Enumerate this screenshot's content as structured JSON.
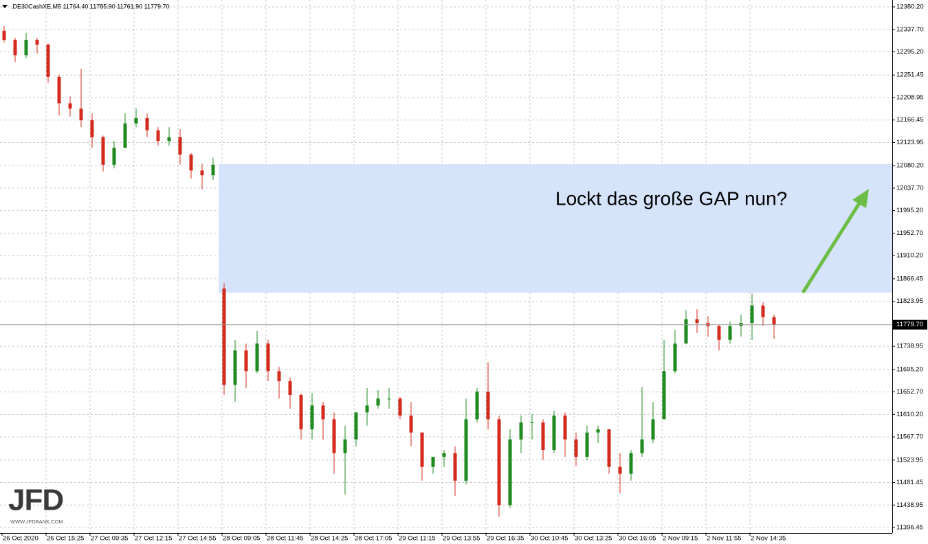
{
  "header": ".DE30CashXE,M5  11764.40 11785.90 11761.90 11779.70",
  "logo": {
    "brand": "JFD",
    "site": "WWW.JFDBANK.COM"
  },
  "chart_data": {
    "type": "candlestick",
    "annotation": "Lockt das große GAP nun?",
    "categories": [
      "26 Oct 2020",
      null,
      null,
      null,
      "26 Oct 15:25",
      null,
      null,
      null,
      "27 Oct 09:35",
      null,
      null,
      null,
      "27 Oct 12:15",
      null,
      null,
      null,
      "27 Oct 14:55",
      null,
      null,
      null,
      "28 Oct 09:05",
      null,
      null,
      null,
      "28 Oct 11:45",
      null,
      null,
      null,
      "28 Oct 14:25",
      null,
      null,
      null,
      "28 Oct 17:05",
      null,
      null,
      null,
      "29 Oct 11:15",
      null,
      null,
      null,
      "29 Oct 13:55",
      null,
      null,
      null,
      "29 Oct 16:35",
      null,
      null,
      null,
      "30 Oct 10:45",
      null,
      null,
      null,
      "30 Oct 13:25",
      null,
      null,
      null,
      "30 Oct 16:05",
      null,
      null,
      null,
      "2 Nov 09:15",
      null,
      null,
      null,
      "2 Nov 11:55",
      null,
      null,
      null,
      "2 Nov 14:35",
      null,
      null
    ],
    "open": [
      12335,
      12318,
      12289,
      12318,
      12309,
      12248,
      12198,
      12188,
      12166,
      12134,
      12082,
      12114,
      12160,
      12170,
      12147,
      12127,
      12134,
      12101,
      12071,
      12062,
      11848,
      11666,
      11731,
      11692,
      11744,
      11692,
      11673,
      11647,
      11582,
      11627,
      11601,
      11537,
      11563,
      11614,
      11627,
      11640,
      11640,
      11608,
      11576,
      11511,
      11530,
      11537,
      11485,
      11601,
      11653,
      11601,
      11439,
      11563,
      11595,
      11595,
      11543,
      11608,
      11563,
      11530,
      11576,
      11582,
      11511,
      11498,
      11537,
      11563,
      11601,
      11692,
      11744,
      11790,
      11783,
      11777,
      11751,
      11777,
      11783,
      11816,
      11794
    ],
    "high": [
      12344,
      12322,
      12331,
      12322,
      12311,
      12252,
      12211,
      12263,
      12179,
      12137,
      12127,
      12179,
      12188,
      12179,
      12153,
      12153,
      12149,
      12104,
      12084,
      12095,
      11858,
      11751,
      11744,
      11768,
      11751,
      11700,
      11680,
      11650,
      11651,
      11634,
      11614,
      11589,
      11614,
      11660,
      11656,
      11660,
      11643,
      11634,
      11576,
      11530,
      11543,
      11550,
      11640,
      11660,
      11709,
      11608,
      11582,
      11608,
      11611,
      11601,
      11617,
      11614,
      11576,
      11589,
      11589,
      11582,
      11537,
      11543,
      11662,
      11634,
      11751,
      11770,
      11807,
      11809,
      11796,
      11780,
      11786,
      11799,
      11838,
      11822,
      11799
    ],
    "low": [
      12313,
      12276,
      12283,
      12292,
      12237,
      12175,
      12173,
      12153,
      12114,
      12069,
      12075,
      12114,
      12153,
      12134,
      12118,
      12118,
      12082,
      12056,
      12036,
      12053,
      11647,
      11634,
      11660,
      11688,
      11673,
      11640,
      11621,
      11563,
      11563,
      11563,
      11498,
      11459,
      11550,
      11589,
      11621,
      11621,
      11601,
      11550,
      11485,
      11498,
      11511,
      11456,
      11478,
      11595,
      11582,
      11417,
      11433,
      11537,
      11563,
      11524,
      11537,
      11530,
      11513,
      11524,
      11556,
      11498,
      11461,
      11485,
      11530,
      11556,
      11601,
      11688,
      11744,
      11764,
      11757,
      11731,
      11744,
      11757,
      11751,
      11777,
      11753
    ],
    "close": [
      12318,
      12289,
      12318,
      12309,
      12248,
      12198,
      12188,
      12166,
      12134,
      12082,
      12114,
      12160,
      12170,
      12147,
      12127,
      12134,
      12101,
      12071,
      12062,
      12082,
      11666,
      11731,
      11692,
      11744,
      11692,
      11673,
      11647,
      11582,
      11627,
      11601,
      11537,
      11563,
      11614,
      11627,
      11640,
      11640,
      11608,
      11576,
      11511,
      11530,
      11537,
      11485,
      11601,
      11653,
      11601,
      11439,
      11563,
      11595,
      11595,
      11543,
      11608,
      11563,
      11530,
      11576,
      11582,
      11511,
      11498,
      11537,
      11563,
      11601,
      11692,
      11744,
      11790,
      11783,
      11777,
      11751,
      11777,
      11783,
      11816,
      11794,
      11779.7
    ],
    "up_color": "#1f8a1f",
    "down_color": "#d42a1e",
    "gap_zone": [
      11840,
      12083
    ],
    "gap_color": "#d5e3fb",
    "last_price": {
      "value": 11779.7,
      "label": "11779.70"
    },
    "ylim": [
      11386.1,
      12393.2
    ],
    "yticks": [
      {
        "value": 12380.2,
        "label": "12380.20"
      },
      {
        "value": 12337.7,
        "label": "12337.70"
      },
      {
        "value": 12295.2,
        "label": "12295.20"
      },
      {
        "value": 12251.45,
        "label": "12251.45"
      },
      {
        "value": 12208.95,
        "label": "12208.95"
      },
      {
        "value": 12166.45,
        "label": "12166.45"
      },
      {
        "value": 12123.95,
        "label": "12123.95"
      },
      {
        "value": 12080.2,
        "label": "12080.20"
      },
      {
        "value": 12037.7,
        "label": "12037.70"
      },
      {
        "value": 11995.2,
        "label": "11995.20"
      },
      {
        "value": 11952.7,
        "label": "11952.70"
      },
      {
        "value": 11910.2,
        "label": "11910.20"
      },
      {
        "value": 11866.45,
        "label": "11866.45"
      },
      {
        "value": 11823.95,
        "label": "11823.95"
      },
      {
        "value": 11738.95,
        "label": "11738.95"
      },
      {
        "value": 11695.2,
        "label": "11695.20"
      },
      {
        "value": 11652.7,
        "label": "11652.70"
      },
      {
        "value": 11610.2,
        "label": "11610.20"
      },
      {
        "value": 11567.7,
        "label": "11567.70"
      },
      {
        "value": 11523.95,
        "label": "11523.95"
      },
      {
        "value": 11481.45,
        "label": "11481.45"
      },
      {
        "value": 11438.95,
        "label": "11438.95"
      },
      {
        "value": 11396.45,
        "label": "11396.45"
      }
    ],
    "grid": true
  }
}
